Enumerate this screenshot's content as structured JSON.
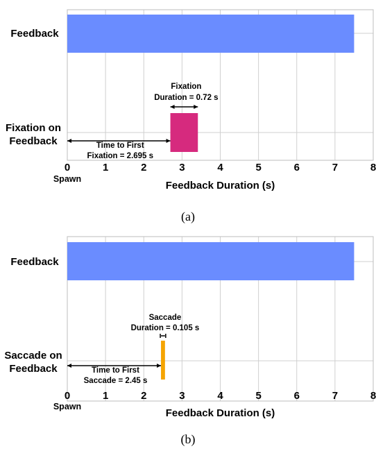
{
  "chart_data": [
    {
      "type": "bar",
      "orientation": "horizontal",
      "subcaption": "(a)",
      "xlabel": "Feedback Duration (s)",
      "xlim": [
        0,
        8
      ],
      "xticks": [
        "0",
        "1",
        "2",
        "3",
        "4",
        "5",
        "6",
        "7",
        "8"
      ],
      "origin_label": "Spawn",
      "grid": true,
      "categories": [
        "Feedback",
        "Fixation on Feedback"
      ],
      "category_lines": [
        [
          "Feedback"
        ],
        [
          "Fixation on",
          "Feedback"
        ]
      ],
      "bars": [
        {
          "category": "Feedback",
          "start": 0,
          "end": 7.5,
          "color": "#6a8cff"
        },
        {
          "category": "Fixation on Feedback",
          "start": 2.695,
          "end": 3.415,
          "color": "#d62a7e"
        }
      ],
      "annotations": {
        "duration": {
          "lines": [
            "Fixation",
            "Duration = 0.72 s"
          ],
          "start": 2.695,
          "end": 3.415
        },
        "time_to_first": {
          "lines": [
            "Time to First",
            "Fixation = 2.695 s"
          ],
          "start": 0,
          "end": 2.695
        }
      }
    },
    {
      "type": "bar",
      "orientation": "horizontal",
      "subcaption": "(b)",
      "xlabel": "Feedback Duration (s)",
      "xlim": [
        0,
        8
      ],
      "xticks": [
        "0",
        "1",
        "2",
        "3",
        "4",
        "5",
        "6",
        "7",
        "8"
      ],
      "origin_label": "Spawn",
      "grid": true,
      "categories": [
        "Feedback",
        "Saccade on Feedback"
      ],
      "category_lines": [
        [
          "Feedback"
        ],
        [
          "Saccade on",
          "Feedback"
        ]
      ],
      "bars": [
        {
          "category": "Feedback",
          "start": 0,
          "end": 7.5,
          "color": "#6a8cff"
        },
        {
          "category": "Saccade on Feedback",
          "start": 2.45,
          "end": 2.555,
          "color": "#f5a400"
        }
      ],
      "annotations": {
        "duration": {
          "lines": [
            "Saccade",
            "Duration = 0.105 s"
          ],
          "start": 2.45,
          "end": 2.555
        },
        "time_to_first": {
          "lines": [
            "Time to First",
            "Saccade = 2.45 s"
          ],
          "start": 0,
          "end": 2.45
        }
      }
    }
  ]
}
